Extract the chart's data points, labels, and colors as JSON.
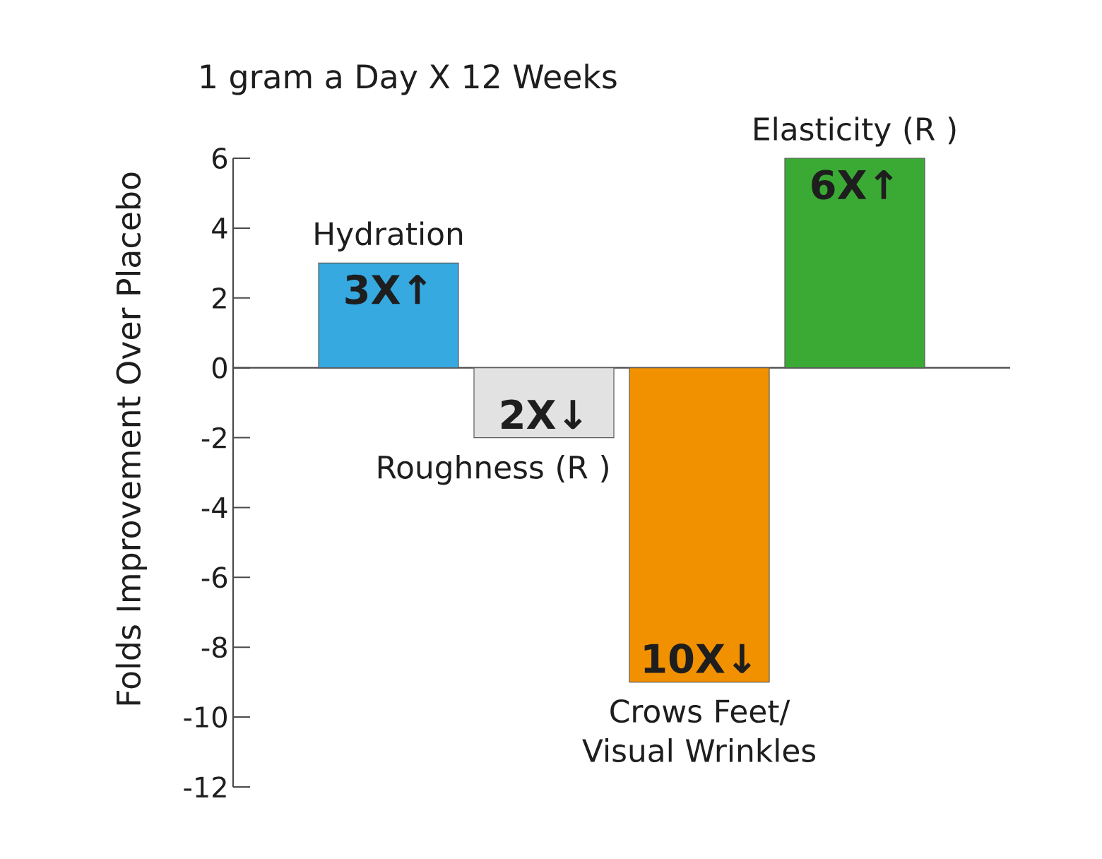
{
  "chart_data": {
    "type": "bar",
    "title": "1 gram a Day X 12 Weeks",
    "ylabel": "Folds Improvement Over Placebo",
    "categories": [
      "Hydration",
      "Roughness (R )",
      "Crows Feet/ Visual Wrinkles",
      "Elasticity (R )"
    ],
    "values": [
      3,
      -2,
      -9,
      6
    ],
    "colors": [
      "#36a9e1",
      "#e2e2e2",
      "#f29100",
      "#3aaa35"
    ],
    "annotations": [
      {
        "text": "3X↑",
        "x": "Hydration",
        "y": 3
      },
      {
        "text": "2X↓",
        "x": "Roughness (R )",
        "y": -2
      },
      {
        "text": "10X↓",
        "x": "Crows Feet/ Visual Wrinkles",
        "y": -9
      },
      {
        "text": "6X↑",
        "x": "Elasticity (R )",
        "y": 6
      }
    ],
    "ylim": [
      -12,
      6
    ],
    "yticks": [
      -12,
      -10,
      -8,
      -6,
      -4,
      -2,
      0,
      2,
      4,
      6
    ]
  }
}
